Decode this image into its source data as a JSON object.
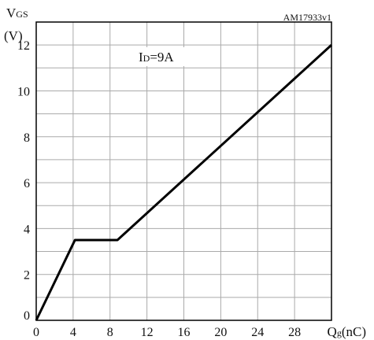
{
  "chart_data": {
    "type": "line",
    "ylabel_main": "V",
    "ylabel_sub": "GS",
    "ylabel_unit": "(V)",
    "xlabel_main": "Q",
    "xlabel_sub": "g",
    "xlabel_unit": "(nC)",
    "id_code": "AM17933v1",
    "annotation_main": "I",
    "annotation_sub": "D",
    "annotation_value": "=9A",
    "xlim": [
      0,
      32
    ],
    "ylim": [
      0,
      13
    ],
    "x_ticks": [
      0,
      4,
      8,
      12,
      16,
      20,
      24,
      28
    ],
    "y_ticks": [
      0,
      2,
      4,
      6,
      8,
      10,
      12
    ],
    "grid": true,
    "series": [
      {
        "x": [
          0,
          4.2,
          8.8,
          32
        ],
        "y": [
          0,
          3.5,
          3.5,
          12
        ]
      }
    ],
    "colors": {
      "line": "#000000",
      "grid": "#aaaaaa",
      "axis": "#000000"
    }
  }
}
